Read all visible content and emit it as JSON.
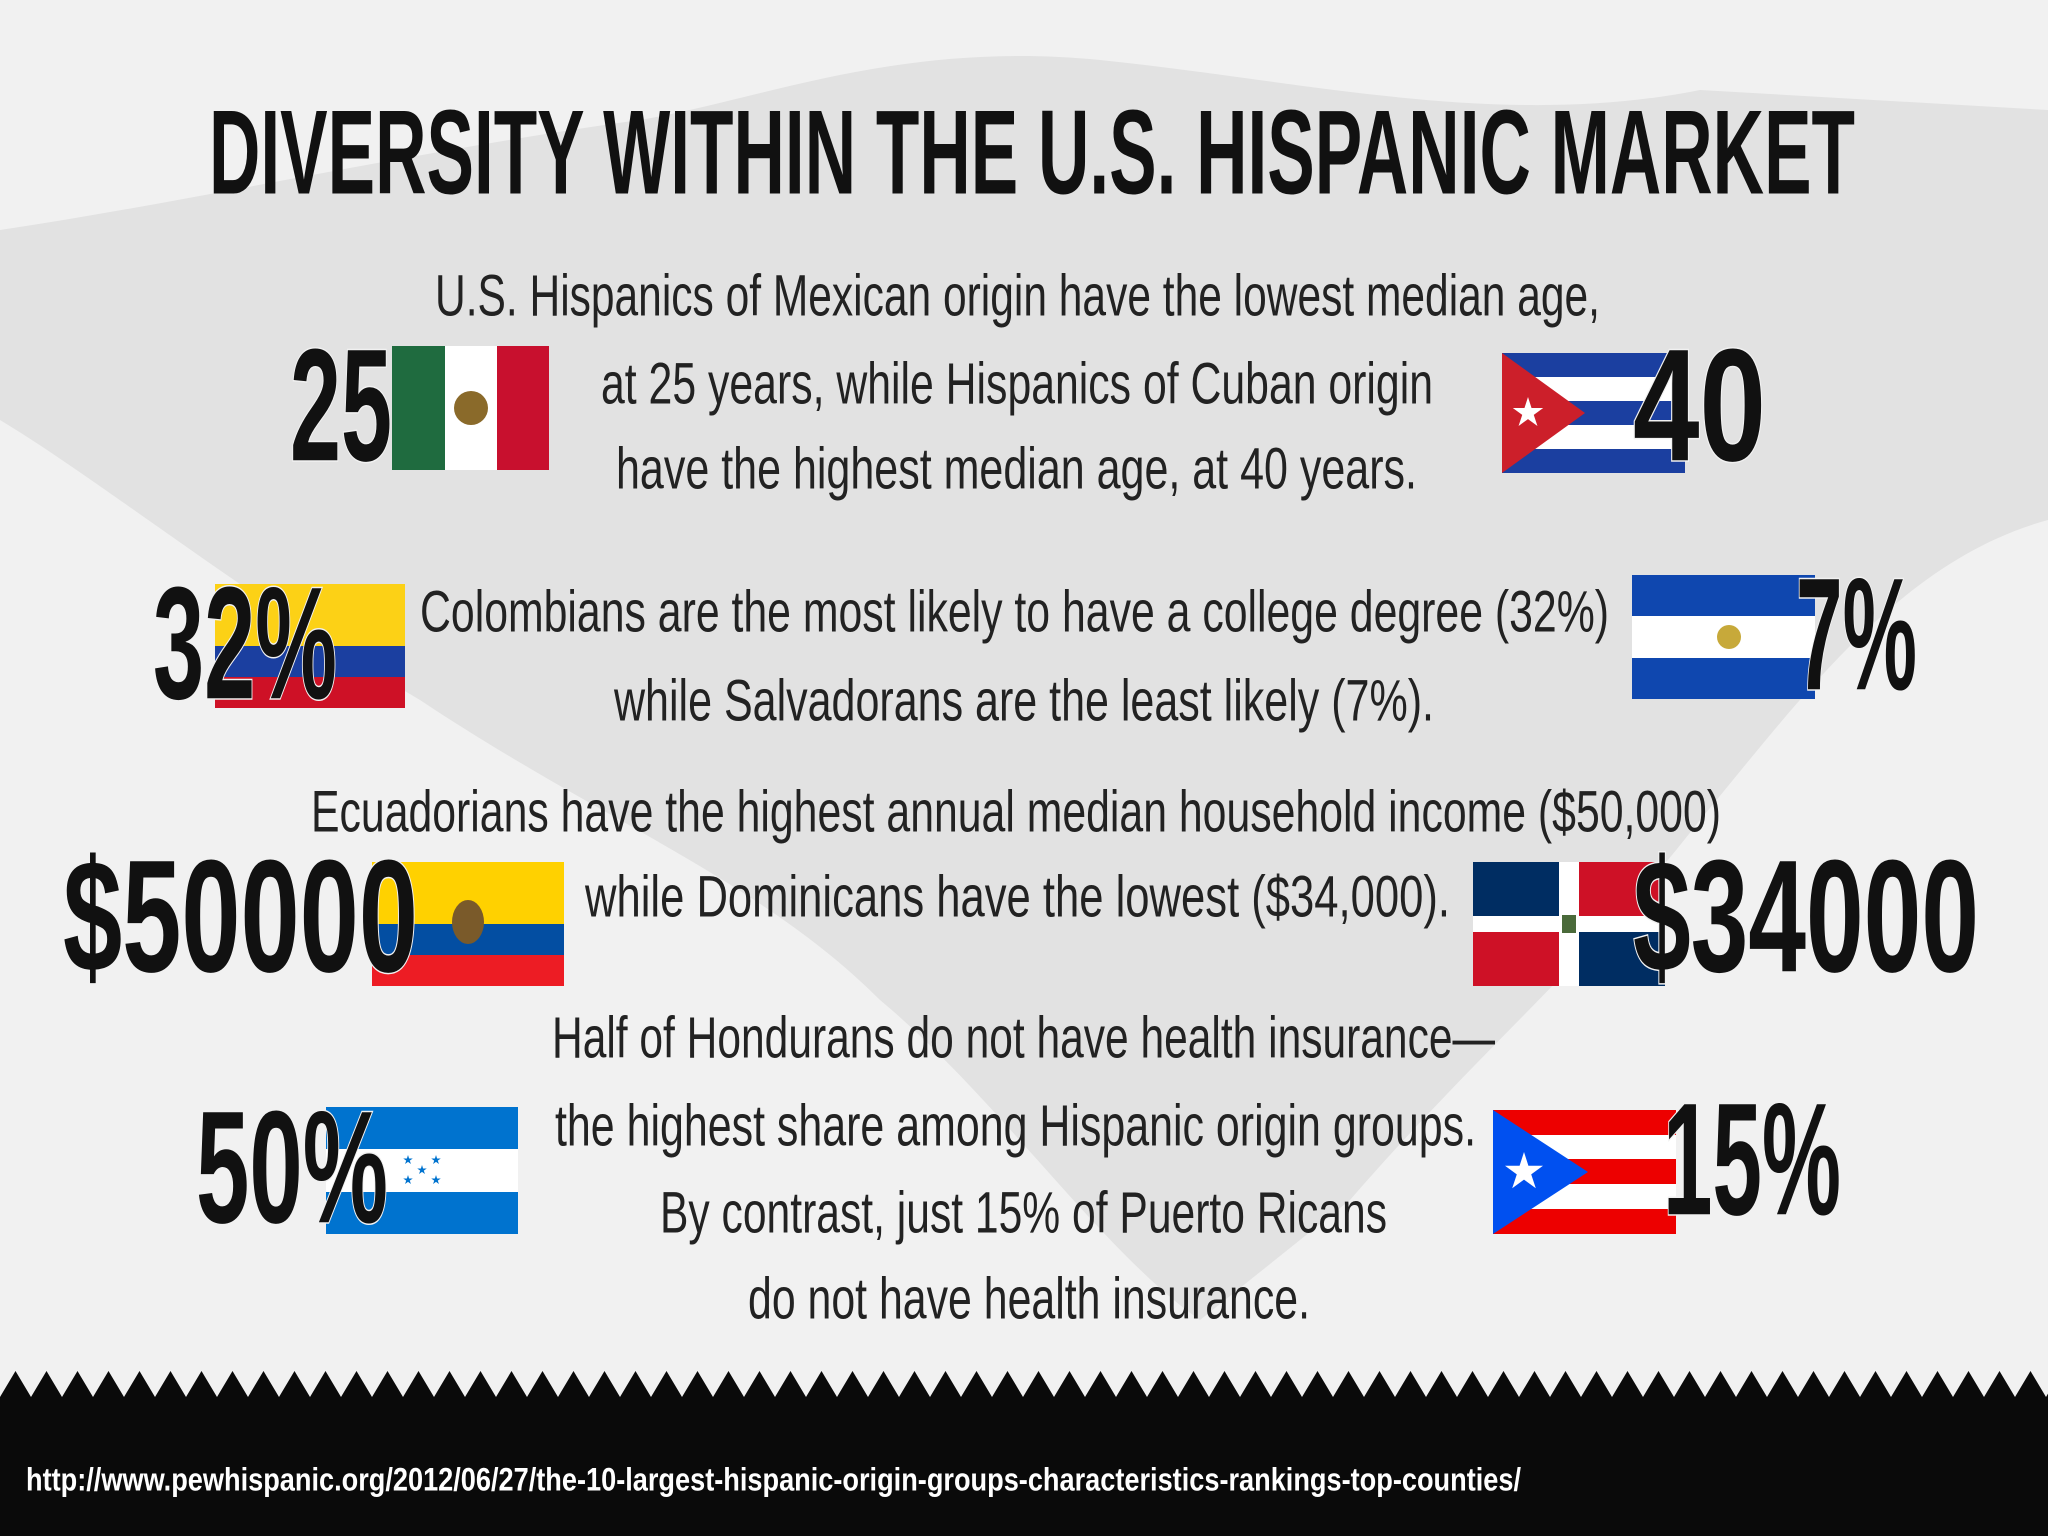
{
  "title": "DIVERSITY WITHIN THE U.S. HISPANIC MARKET",
  "rows": [
    {
      "left_figure": "25",
      "right_figure": "40",
      "lines": [
        "U.S. Hispanics of Mexican origin have the lowest median age,",
        "at 25 years, while Hispanics of Cuban origin",
        "have the highest median age, at 40 years."
      ]
    },
    {
      "left_figure": "32%",
      "right_figure": "7%",
      "lines": [
        "Colombians are the most likely to have a college degree (32%)",
        "while Salvadorans are the least likely (7%)."
      ]
    },
    {
      "left_figure": "$50000",
      "right_figure": "$34000",
      "lines": [
        "Ecuadorians have the highest annual median household income ($50,000)",
        "while Dominicans have the lowest ($34,000)."
      ]
    },
    {
      "left_figure": "50%",
      "right_figure": "15%",
      "lines": [
        "Half of Hondurans do not have health insurance—",
        "the highest share among Hispanic origin groups.",
        "By contrast, just 15% of Puerto Ricans",
        "do not have health insurance."
      ]
    }
  ],
  "source_url": "http://www.pewhispanic.org/2012/06/27/the-10-largest-hispanic-origin-groups-characteristics-rankings-top-counties/"
}
